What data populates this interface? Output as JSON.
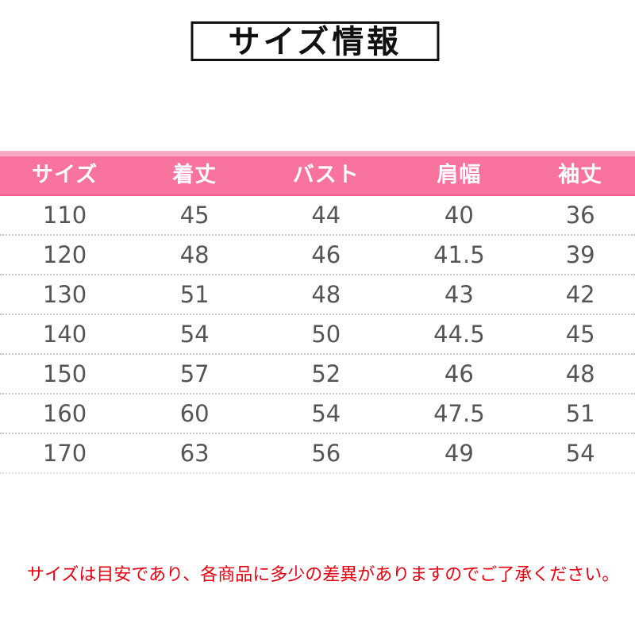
{
  "title": "サイズ情報",
  "footnote": "サイズは目安であり、各商品に多少の差異がありますのでご了承ください。",
  "chart_data": {
    "type": "table",
    "title": "サイズ情報",
    "columns": [
      "サイズ",
      "着丈",
      "バスト",
      "肩幅",
      "袖丈"
    ],
    "rows": [
      [
        "110",
        "45",
        "44",
        "40",
        "36"
      ],
      [
        "120",
        "48",
        "46",
        "41.5",
        "39"
      ],
      [
        "130",
        "51",
        "48",
        "43",
        "42"
      ],
      [
        "140",
        "54",
        "50",
        "44.5",
        "45"
      ],
      [
        "150",
        "57",
        "52",
        "46",
        "48"
      ],
      [
        "160",
        "60",
        "54",
        "47.5",
        "51"
      ],
      [
        "170",
        "63",
        "56",
        "49",
        "54"
      ]
    ],
    "note": "サイズは目安であり、各商品に多少の差異がありますのでご了承ください。"
  },
  "colors": {
    "header_bg": "#f9739f",
    "header_bg_light": "#fbaac6",
    "header_bg_dark": "#f25c8e",
    "header_text": "#ffffff",
    "cell_text": "#555555",
    "divider": "#c4c4c4",
    "divider_faint": "#e3e3e3",
    "footnote_text": "#e60012",
    "title_text": "#111111",
    "title_border": "#111111"
  }
}
